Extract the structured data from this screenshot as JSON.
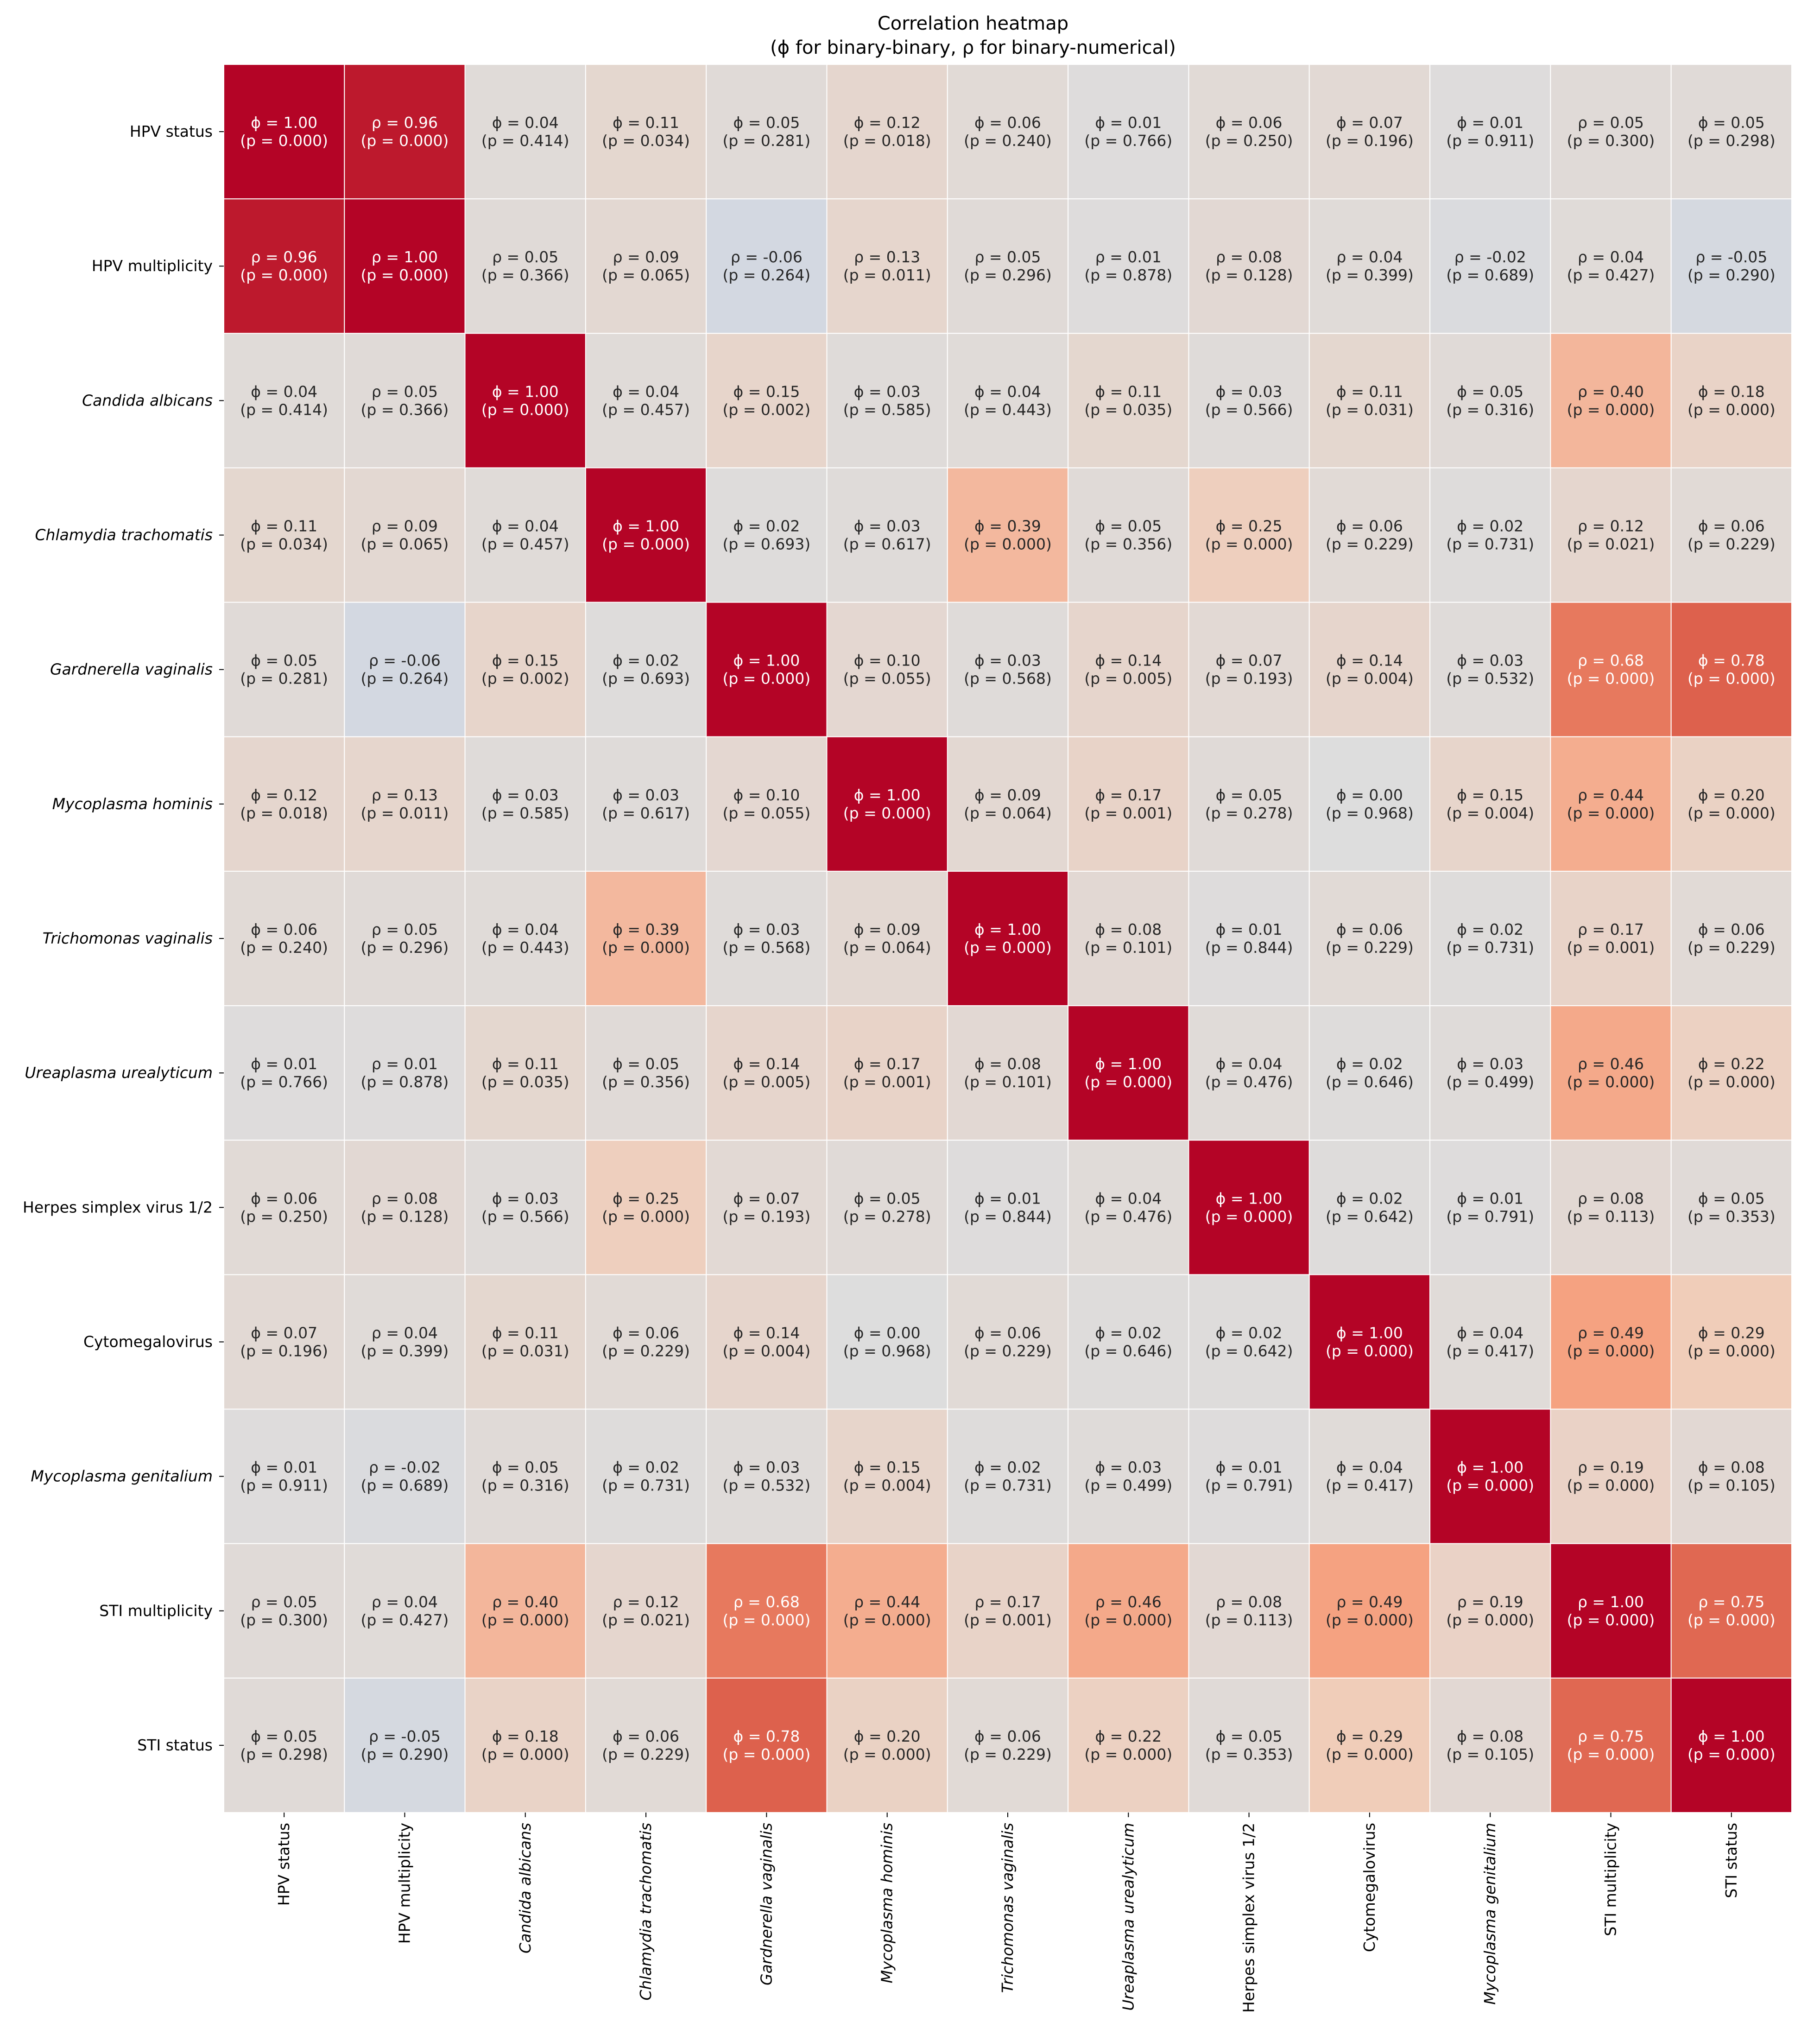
{
  "chart_data": {
    "type": "heatmap",
    "title": "Correlation heatmap",
    "subtitle": "(ϕ for binary-binary, ρ for binary-numerical)",
    "colormap": "coolwarm",
    "vmin": -1,
    "vmax": 1,
    "labels": [
      {
        "text": "HPV status",
        "italic": false
      },
      {
        "text": "HPV multiplicity",
        "italic": false
      },
      {
        "text": "Candida albicans",
        "italic": true
      },
      {
        "text": "Chlamydia trachomatis",
        "italic": true
      },
      {
        "text": "Gardnerella vaginalis",
        "italic": true
      },
      {
        "text": "Mycoplasma hominis",
        "italic": true
      },
      {
        "text": "Trichomonas vaginalis",
        "italic": true
      },
      {
        "text": "Ureaplasma urealyticum",
        "italic": true
      },
      {
        "text": "Herpes simplex virus 1/2",
        "italic": false
      },
      {
        "text": "Cytomegalovirus",
        "italic": false
      },
      {
        "text": "Mycoplasma genitalium",
        "italic": true
      },
      {
        "text": "STI multiplicity",
        "italic": false
      },
      {
        "text": "STI status",
        "italic": false
      }
    ],
    "symbols": [
      [
        "ϕ",
        "ρ",
        "ϕ",
        "ϕ",
        "ϕ",
        "ϕ",
        "ϕ",
        "ϕ",
        "ϕ",
        "ϕ",
        "ϕ",
        "ρ",
        "ϕ"
      ],
      [
        "ρ",
        "ρ",
        "ρ",
        "ρ",
        "ρ",
        "ρ",
        "ρ",
        "ρ",
        "ρ",
        "ρ",
        "ρ",
        "ρ",
        "ρ"
      ],
      [
        "ϕ",
        "ρ",
        "ϕ",
        "ϕ",
        "ϕ",
        "ϕ",
        "ϕ",
        "ϕ",
        "ϕ",
        "ϕ",
        "ϕ",
        "ρ",
        "ϕ"
      ],
      [
        "ϕ",
        "ρ",
        "ϕ",
        "ϕ",
        "ϕ",
        "ϕ",
        "ϕ",
        "ϕ",
        "ϕ",
        "ϕ",
        "ϕ",
        "ρ",
        "ϕ"
      ],
      [
        "ϕ",
        "ρ",
        "ϕ",
        "ϕ",
        "ϕ",
        "ϕ",
        "ϕ",
        "ϕ",
        "ϕ",
        "ϕ",
        "ϕ",
        "ρ",
        "ϕ"
      ],
      [
        "ϕ",
        "ρ",
        "ϕ",
        "ϕ",
        "ϕ",
        "ϕ",
        "ϕ",
        "ϕ",
        "ϕ",
        "ϕ",
        "ϕ",
        "ρ",
        "ϕ"
      ],
      [
        "ϕ",
        "ρ",
        "ϕ",
        "ϕ",
        "ϕ",
        "ϕ",
        "ϕ",
        "ϕ",
        "ϕ",
        "ϕ",
        "ϕ",
        "ρ",
        "ϕ"
      ],
      [
        "ϕ",
        "ρ",
        "ϕ",
        "ϕ",
        "ϕ",
        "ϕ",
        "ϕ",
        "ϕ",
        "ϕ",
        "ϕ",
        "ϕ",
        "ρ",
        "ϕ"
      ],
      [
        "ϕ",
        "ρ",
        "ϕ",
        "ϕ",
        "ϕ",
        "ϕ",
        "ϕ",
        "ϕ",
        "ϕ",
        "ϕ",
        "ϕ",
        "ρ",
        "ϕ"
      ],
      [
        "ϕ",
        "ρ",
        "ϕ",
        "ϕ",
        "ϕ",
        "ϕ",
        "ϕ",
        "ϕ",
        "ϕ",
        "ϕ",
        "ϕ",
        "ρ",
        "ϕ"
      ],
      [
        "ϕ",
        "ρ",
        "ϕ",
        "ϕ",
        "ϕ",
        "ϕ",
        "ϕ",
        "ϕ",
        "ϕ",
        "ϕ",
        "ϕ",
        "ρ",
        "ϕ"
      ],
      [
        "ρ",
        "ρ",
        "ρ",
        "ρ",
        "ρ",
        "ρ",
        "ρ",
        "ρ",
        "ρ",
        "ρ",
        "ρ",
        "ρ",
        "ρ"
      ],
      [
        "ϕ",
        "ρ",
        "ϕ",
        "ϕ",
        "ϕ",
        "ϕ",
        "ϕ",
        "ϕ",
        "ϕ",
        "ϕ",
        "ϕ",
        "ρ",
        "ϕ"
      ]
    ],
    "values": [
      [
        "1.00",
        "0.96",
        "0.04",
        "0.11",
        "0.05",
        "0.12",
        "0.06",
        "0.01",
        "0.06",
        "0.07",
        "0.01",
        "0.05",
        "0.05"
      ],
      [
        "0.96",
        "1.00",
        "0.05",
        "0.09",
        "-0.06",
        "0.13",
        "0.05",
        "0.01",
        "0.08",
        "0.04",
        "-0.02",
        "0.04",
        "-0.05"
      ],
      [
        "0.04",
        "0.05",
        "1.00",
        "0.04",
        "0.15",
        "0.03",
        "0.04",
        "0.11",
        "0.03",
        "0.11",
        "0.05",
        "0.40",
        "0.18"
      ],
      [
        "0.11",
        "0.09",
        "0.04",
        "1.00",
        "0.02",
        "0.03",
        "0.39",
        "0.05",
        "0.25",
        "0.06",
        "0.02",
        "0.12",
        "0.06"
      ],
      [
        "0.05",
        "-0.06",
        "0.15",
        "0.02",
        "1.00",
        "0.10",
        "0.03",
        "0.14",
        "0.07",
        "0.14",
        "0.03",
        "0.68",
        "0.78"
      ],
      [
        "0.12",
        "0.13",
        "0.03",
        "0.03",
        "0.10",
        "1.00",
        "0.09",
        "0.17",
        "0.05",
        "0.00",
        "0.15",
        "0.44",
        "0.20"
      ],
      [
        "0.06",
        "0.05",
        "0.04",
        "0.39",
        "0.03",
        "0.09",
        "1.00",
        "0.08",
        "0.01",
        "0.06",
        "0.02",
        "0.17",
        "0.06"
      ],
      [
        "0.01",
        "0.01",
        "0.11",
        "0.05",
        "0.14",
        "0.17",
        "0.08",
        "1.00",
        "0.04",
        "0.02",
        "0.03",
        "0.46",
        "0.22"
      ],
      [
        "0.06",
        "0.08",
        "0.03",
        "0.25",
        "0.07",
        "0.05",
        "0.01",
        "0.04",
        "1.00",
        "0.02",
        "0.01",
        "0.08",
        "0.05"
      ],
      [
        "0.07",
        "0.04",
        "0.11",
        "0.06",
        "0.14",
        "0.00",
        "0.06",
        "0.02",
        "0.02",
        "1.00",
        "0.04",
        "0.49",
        "0.29"
      ],
      [
        "0.01",
        "-0.02",
        "0.05",
        "0.02",
        "0.03",
        "0.15",
        "0.02",
        "0.03",
        "0.01",
        "0.04",
        "1.00",
        "0.19",
        "0.08"
      ],
      [
        "0.05",
        "0.04",
        "0.40",
        "0.12",
        "0.68",
        "0.44",
        "0.17",
        "0.46",
        "0.08",
        "0.49",
        "0.19",
        "1.00",
        "0.75"
      ],
      [
        "0.05",
        "-0.05",
        "0.18",
        "0.06",
        "0.78",
        "0.20",
        "0.06",
        "0.22",
        "0.05",
        "0.29",
        "0.08",
        "0.75",
        "1.00"
      ]
    ],
    "pvalues": [
      [
        "0.000",
        "0.000",
        "0.414",
        "0.034",
        "0.281",
        "0.018",
        "0.240",
        "0.766",
        "0.250",
        "0.196",
        "0.911",
        "0.300",
        "0.298"
      ],
      [
        "0.000",
        "0.000",
        "0.366",
        "0.065",
        "0.264",
        "0.011",
        "0.296",
        "0.878",
        "0.128",
        "0.399",
        "0.689",
        "0.427",
        "0.290"
      ],
      [
        "0.414",
        "0.366",
        "0.000",
        "0.457",
        "0.002",
        "0.585",
        "0.443",
        "0.035",
        "0.566",
        "0.031",
        "0.316",
        "0.000",
        "0.000"
      ],
      [
        "0.034",
        "0.065",
        "0.457",
        "0.000",
        "0.693",
        "0.617",
        "0.000",
        "0.356",
        "0.000",
        "0.229",
        "0.731",
        "0.021",
        "0.229"
      ],
      [
        "0.281",
        "0.264",
        "0.002",
        "0.693",
        "0.000",
        "0.055",
        "0.568",
        "0.005",
        "0.193",
        "0.004",
        "0.532",
        "0.000",
        "0.000"
      ],
      [
        "0.018",
        "0.011",
        "0.585",
        "0.617",
        "0.055",
        "0.000",
        "0.064",
        "0.001",
        "0.278",
        "0.968",
        "0.004",
        "0.000",
        "0.000"
      ],
      [
        "0.240",
        "0.296",
        "0.443",
        "0.000",
        "0.568",
        "0.064",
        "0.000",
        "0.101",
        "0.844",
        "0.229",
        "0.731",
        "0.001",
        "0.229"
      ],
      [
        "0.766",
        "0.878",
        "0.035",
        "0.356",
        "0.005",
        "0.001",
        "0.101",
        "0.000",
        "0.476",
        "0.646",
        "0.499",
        "0.000",
        "0.000"
      ],
      [
        "0.250",
        "0.128",
        "0.566",
        "0.000",
        "0.193",
        "0.278",
        "0.844",
        "0.476",
        "0.000",
        "0.642",
        "0.791",
        "0.113",
        "0.353"
      ],
      [
        "0.196",
        "0.399",
        "0.031",
        "0.229",
        "0.004",
        "0.968",
        "0.229",
        "0.646",
        "0.642",
        "0.000",
        "0.417",
        "0.000",
        "0.000"
      ],
      [
        "0.911",
        "0.689",
        "0.316",
        "0.731",
        "0.532",
        "0.004",
        "0.731",
        "0.499",
        "0.791",
        "0.417",
        "0.000",
        "0.000",
        "0.105"
      ],
      [
        "0.300",
        "0.427",
        "0.000",
        "0.021",
        "0.000",
        "0.000",
        "0.001",
        "0.000",
        "0.113",
        "0.000",
        "0.000",
        "0.000",
        "0.000"
      ],
      [
        "0.298",
        "0.290",
        "0.000",
        "0.229",
        "0.000",
        "0.000",
        "0.229",
        "0.000",
        "0.353",
        "0.000",
        "0.105",
        "0.000",
        "0.000"
      ]
    ]
  }
}
